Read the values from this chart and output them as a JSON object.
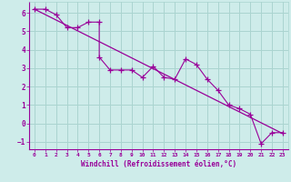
{
  "title": "",
  "xlabel": "Windchill (Refroidissement éolien,°C)",
  "bg_color": "#ceecea",
  "grid_color": "#aad4d0",
  "line_color": "#990099",
  "xlim": [
    -0.5,
    23.5
  ],
  "ylim": [
    -1.4,
    6.6
  ],
  "xticks": [
    0,
    1,
    2,
    3,
    4,
    5,
    6,
    7,
    8,
    9,
    10,
    11,
    12,
    13,
    14,
    15,
    16,
    17,
    18,
    19,
    20,
    21,
    22,
    23
  ],
  "yticks": [
    -1,
    0,
    1,
    2,
    3,
    4,
    5,
    6
  ],
  "trend_x": [
    0,
    23
  ],
  "trend_y": [
    6.2,
    -0.55
  ],
  "data_x": [
    0,
    1,
    2,
    3,
    4,
    5,
    6,
    6,
    7,
    8,
    8,
    9,
    10,
    11,
    12,
    13,
    14,
    15,
    16,
    17,
    18,
    19,
    20,
    21,
    22,
    23
  ],
  "data_y": [
    6.2,
    6.2,
    5.9,
    5.2,
    5.2,
    5.5,
    5.5,
    3.6,
    2.9,
    2.9,
    2.9,
    2.9,
    2.5,
    3.1,
    2.5,
    2.4,
    3.5,
    3.2,
    2.4,
    1.8,
    1.0,
    0.8,
    0.5,
    -1.1,
    -0.5,
    -0.5
  ],
  "marker_x": [
    0,
    1,
    2,
    3,
    4,
    5,
    6,
    6,
    7,
    8,
    9,
    10,
    11,
    12,
    13,
    14,
    15,
    16,
    17,
    18,
    19,
    20,
    21,
    22,
    23
  ],
  "marker_y": [
    6.2,
    6.2,
    5.9,
    5.2,
    5.2,
    5.5,
    5.5,
    3.6,
    2.9,
    2.9,
    2.9,
    2.5,
    3.1,
    2.5,
    2.4,
    3.5,
    3.2,
    2.4,
    1.8,
    1.0,
    0.8,
    0.5,
    -1.1,
    -0.5,
    -0.5
  ]
}
